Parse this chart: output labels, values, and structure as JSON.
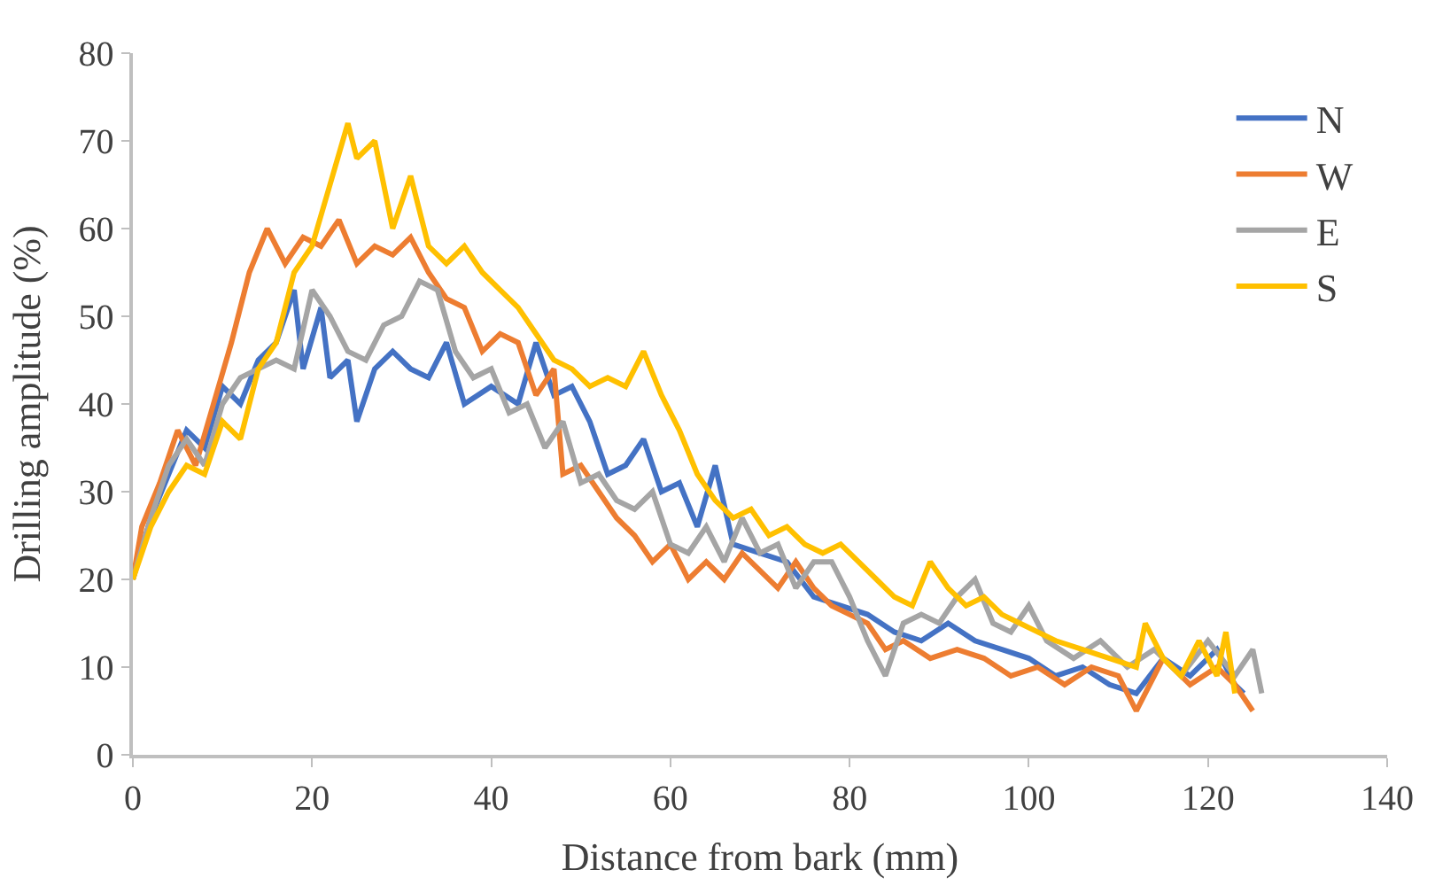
{
  "chart_data": {
    "type": "line",
    "xlabel": "Distance from bark (mm)",
    "ylabel": "Drilling amplitude (%)",
    "xlim": [
      0,
      140
    ],
    "xticks": [
      0,
      20,
      40,
      60,
      80,
      100,
      120,
      140
    ],
    "ylim": [
      0,
      80
    ],
    "yticks": [
      0,
      10,
      20,
      30,
      40,
      50,
      60,
      70,
      80
    ],
    "legend": "top right",
    "marker": "none",
    "line_style": "solid",
    "series": [
      {
        "name": "N",
        "color": "#4472c4",
        "x": [
          0,
          2,
          4,
          6,
          8,
          10,
          12,
          14,
          16,
          18,
          19,
          21,
          22,
          24,
          25,
          27,
          29,
          31,
          33,
          35,
          37,
          40,
          43,
          45,
          47,
          49,
          51,
          53,
          55,
          57,
          59,
          61,
          63,
          65,
          67,
          70,
          73,
          76,
          79,
          82,
          85,
          88,
          91,
          94,
          97,
          100,
          103,
          106,
          109,
          112,
          115,
          118,
          121,
          123,
          124
        ],
        "values": [
          20,
          27,
          32,
          37,
          35,
          42,
          40,
          45,
          47,
          53,
          44,
          51,
          43,
          45,
          38,
          44,
          46,
          44,
          43,
          47,
          40,
          42,
          40,
          47,
          41,
          42,
          38,
          32,
          33,
          36,
          30,
          31,
          26,
          33,
          24,
          23,
          22,
          18,
          17,
          16,
          14,
          13,
          15,
          13,
          12,
          11,
          9,
          10,
          8,
          7,
          11,
          9,
          12,
          8,
          7
        ]
      },
      {
        "name": "W",
        "color": "#ed7d31",
        "x": [
          0,
          1,
          3,
          5,
          7,
          9,
          11,
          13,
          15,
          17,
          19,
          21,
          23,
          25,
          27,
          29,
          31,
          33,
          35,
          37,
          39,
          41,
          43,
          45,
          47,
          48,
          50,
          52,
          54,
          56,
          58,
          60,
          62,
          64,
          66,
          68,
          70,
          72,
          74,
          76,
          78,
          80,
          82,
          84,
          86,
          89,
          92,
          95,
          98,
          101,
          104,
          107,
          110,
          112,
          115,
          118,
          121,
          123,
          125
        ],
        "values": [
          20,
          26,
          31,
          37,
          33,
          40,
          47,
          55,
          60,
          56,
          59,
          58,
          61,
          56,
          58,
          57,
          59,
          55,
          52,
          51,
          46,
          48,
          47,
          41,
          44,
          32,
          33,
          30,
          27,
          25,
          22,
          24,
          20,
          22,
          20,
          23,
          21,
          19,
          22,
          19,
          17,
          16,
          15,
          12,
          13,
          11,
          12,
          11,
          9,
          10,
          8,
          10,
          9,
          5,
          11,
          8,
          10,
          8,
          5
        ]
      },
      {
        "name": "E",
        "color": "#a5a5a5",
        "x": [
          0,
          2,
          4,
          6,
          8,
          10,
          12,
          14,
          16,
          18,
          20,
          22,
          24,
          26,
          28,
          30,
          32,
          34,
          36,
          38,
          40,
          42,
          44,
          46,
          48,
          50,
          52,
          54,
          56,
          58,
          60,
          62,
          64,
          66,
          68,
          70,
          72,
          74,
          76,
          78,
          80,
          82,
          84,
          86,
          88,
          90,
          92,
          94,
          96,
          98,
          100,
          102,
          105,
          108,
          111,
          114,
          117,
          120,
          123,
          125,
          126
        ],
        "values": [
          20,
          27,
          33,
          36,
          33,
          40,
          43,
          44,
          45,
          44,
          53,
          50,
          46,
          45,
          49,
          50,
          54,
          53,
          46,
          43,
          44,
          39,
          40,
          35,
          38,
          31,
          32,
          29,
          28,
          30,
          24,
          23,
          26,
          22,
          27,
          23,
          24,
          19,
          22,
          22,
          18,
          13,
          9,
          15,
          16,
          15,
          18,
          20,
          15,
          14,
          17,
          13,
          11,
          13,
          10,
          12,
          9,
          13,
          9,
          12,
          7
        ]
      },
      {
        "name": "S",
        "color": "#ffc000",
        "x": [
          0,
          2,
          4,
          6,
          8,
          10,
          12,
          14,
          16,
          18,
          20,
          22,
          24,
          25,
          27,
          29,
          31,
          33,
          35,
          37,
          39,
          41,
          43,
          45,
          47,
          49,
          51,
          53,
          55,
          57,
          59,
          61,
          63,
          65,
          67,
          69,
          71,
          73,
          75,
          77,
          79,
          81,
          83,
          85,
          87,
          89,
          91,
          93,
          95,
          97,
          99,
          101,
          103,
          106,
          109,
          112,
          113,
          115,
          117,
          119,
          121,
          122,
          123
        ],
        "values": [
          20,
          26,
          30,
          33,
          32,
          38,
          36,
          44,
          47,
          55,
          58,
          65,
          72,
          68,
          70,
          60,
          66,
          58,
          56,
          58,
          55,
          53,
          51,
          48,
          45,
          44,
          42,
          43,
          42,
          46,
          41,
          37,
          32,
          29,
          27,
          28,
          25,
          26,
          24,
          23,
          24,
          22,
          20,
          18,
          17,
          22,
          19,
          17,
          18,
          16,
          15,
          14,
          13,
          12,
          11,
          10,
          15,
          11,
          9,
          13,
          9,
          14,
          7
        ]
      }
    ]
  }
}
